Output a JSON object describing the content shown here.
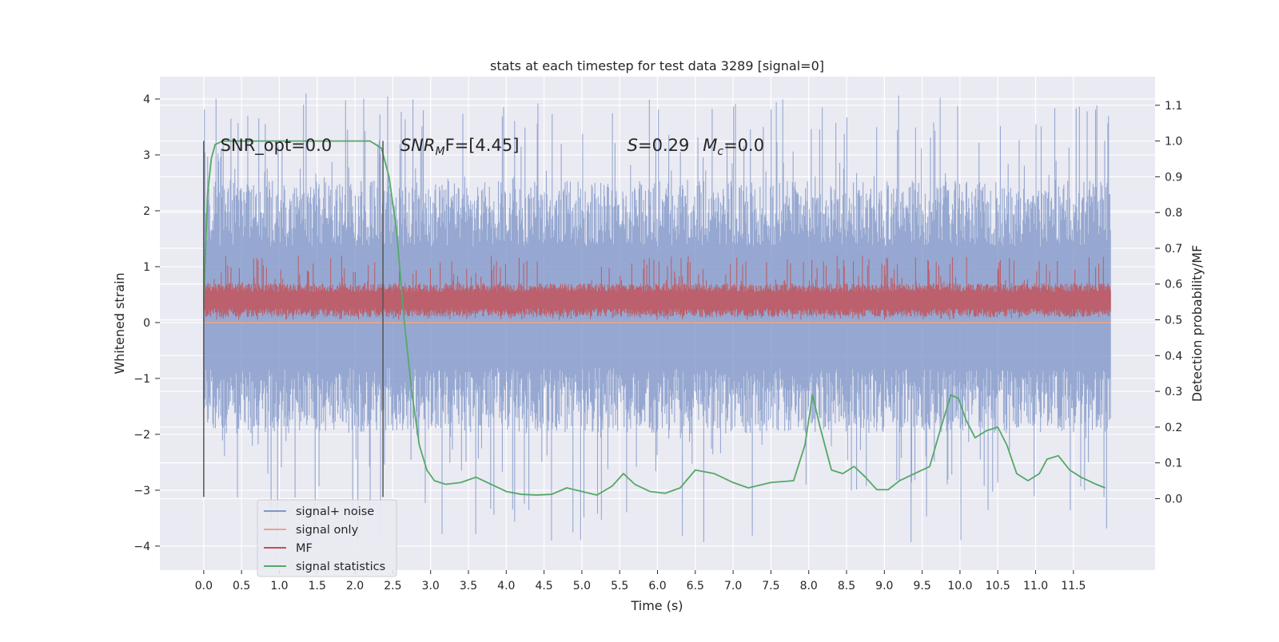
{
  "chart_data": {
    "type": "line",
    "title": "stats at each timestep for test data 3289 [signal=0]",
    "xlabel": "Time (s)",
    "ylabel": "Whitened strain",
    "ylabel_right": "Detection probability/MF",
    "xlim": [
      -0.58,
      12.58
    ],
    "ylim": [
      -4.43,
      4.4
    ],
    "ylim_right": [
      -0.2,
      1.18
    ],
    "x_ticks": [
      0.0,
      0.5,
      1.0,
      1.5,
      2.0,
      2.5,
      3.0,
      3.5,
      4.0,
      4.5,
      5.0,
      5.5,
      6.0,
      6.5,
      7.0,
      7.5,
      8.0,
      8.5,
      9.0,
      9.5,
      10.0,
      10.5,
      11.0,
      11.5
    ],
    "x_tick_labels": [
      "0.0",
      "0.5",
      "1.0",
      "1.5",
      "2.0",
      "2.5",
      "3.0",
      "3.5",
      "4.0",
      "4.5",
      "5.0",
      "5.5",
      "6.0",
      "6.5",
      "7.0",
      "7.5",
      "8.0",
      "8.5",
      "9.0",
      "9.5",
      "10.0",
      "10.5",
      "11.0",
      "11.5"
    ],
    "y_ticks": [
      -4,
      -3,
      -2,
      -1,
      0,
      1,
      2,
      3,
      4
    ],
    "y_tick_labels": [
      "−4",
      "−3",
      "−2",
      "−1",
      "0",
      "1",
      "2",
      "3",
      "4"
    ],
    "y_right_ticks": [
      0.0,
      0.1,
      0.2,
      0.3,
      0.4,
      0.5,
      0.6,
      0.7,
      0.8,
      0.9,
      1.0,
      1.1
    ],
    "y_right_tick_labels": [
      "0.0",
      "0.1",
      "0.2",
      "0.3",
      "0.4",
      "0.5",
      "0.6",
      "0.7",
      "0.8",
      "0.9",
      "1.0",
      "1.1"
    ],
    "grid": true,
    "legend_position": "lower-left",
    "series": [
      {
        "name": "signal+ noise",
        "color": "#8197c8",
        "kind": "noise-band",
        "x_range": [
          0.0,
          11.99
        ],
        "band": [
          -1.4,
          1.95
        ],
        "peak_range": [
          -3.95,
          4.1
        ]
      },
      {
        "name": "signal only",
        "color": "#e8a48a",
        "kind": "line",
        "x": [
          0.0,
          11.99
        ],
        "y": [
          0.0,
          0.0
        ]
      },
      {
        "name": "MF",
        "color": "#c44e52",
        "kind": "noise-band",
        "axis": "right",
        "x_range": [
          0.0,
          11.99
        ],
        "band": [
          0.52,
          0.59
        ],
        "peak_range": [
          0.5,
          0.68
        ]
      },
      {
        "name": "signal statistics",
        "color": "#55a868",
        "kind": "line",
        "axis": "right",
        "x": [
          0.0,
          0.05,
          0.1,
          0.15,
          0.25,
          0.4,
          1.0,
          1.5,
          2.0,
          2.2,
          2.35,
          2.45,
          2.55,
          2.65,
          2.75,
          2.85,
          2.95,
          3.05,
          3.2,
          3.4,
          3.6,
          3.8,
          4.0,
          4.2,
          4.4,
          4.6,
          4.8,
          5.0,
          5.2,
          5.4,
          5.55,
          5.7,
          5.9,
          6.1,
          6.3,
          6.5,
          6.75,
          7.0,
          7.2,
          7.5,
          7.8,
          7.95,
          8.05,
          8.15,
          8.3,
          8.45,
          8.6,
          8.75,
          8.9,
          9.05,
          9.2,
          9.4,
          9.6,
          9.75,
          9.88,
          9.98,
          10.08,
          10.2,
          10.35,
          10.5,
          10.62,
          10.75,
          10.9,
          11.05,
          11.15,
          11.3,
          11.45,
          11.6,
          11.8,
          11.92
        ],
        "y": [
          0.55,
          0.85,
          0.95,
          0.99,
          1.0,
          1.0,
          1.0,
          1.0,
          1.0,
          1.0,
          0.98,
          0.9,
          0.75,
          0.5,
          0.3,
          0.15,
          0.08,
          0.05,
          0.04,
          0.045,
          0.06,
          0.04,
          0.02,
          0.012,
          0.01,
          0.012,
          0.03,
          0.02,
          0.01,
          0.035,
          0.07,
          0.04,
          0.02,
          0.015,
          0.03,
          0.08,
          0.07,
          0.045,
          0.03,
          0.045,
          0.05,
          0.15,
          0.29,
          0.2,
          0.08,
          0.07,
          0.09,
          0.06,
          0.025,
          0.025,
          0.05,
          0.07,
          0.09,
          0.2,
          0.29,
          0.28,
          0.22,
          0.17,
          0.19,
          0.2,
          0.15,
          0.07,
          0.05,
          0.07,
          0.11,
          0.12,
          0.08,
          0.06,
          0.04,
          0.03
        ]
      }
    ],
    "vertical_lines": [
      0.0,
      2.37
    ],
    "annotations": [
      {
        "kind": "plain",
        "text": "SNR_opt=0.0",
        "x": 0.22,
        "y": 3.17
      },
      {
        "kind": "snr-mf",
        "italic": "SNR",
        "sub": "M",
        "rest": "F=[4.45]",
        "x": 2.6,
        "y": 3.17
      },
      {
        "kind": "s",
        "italic": "S",
        "rest": "=0.29",
        "x": 5.6,
        "y": 3.17
      },
      {
        "kind": "mc",
        "italic": "M",
        "sub": "c",
        "rest": "=0.0",
        "x": 6.6,
        "y": 3.17
      }
    ]
  }
}
